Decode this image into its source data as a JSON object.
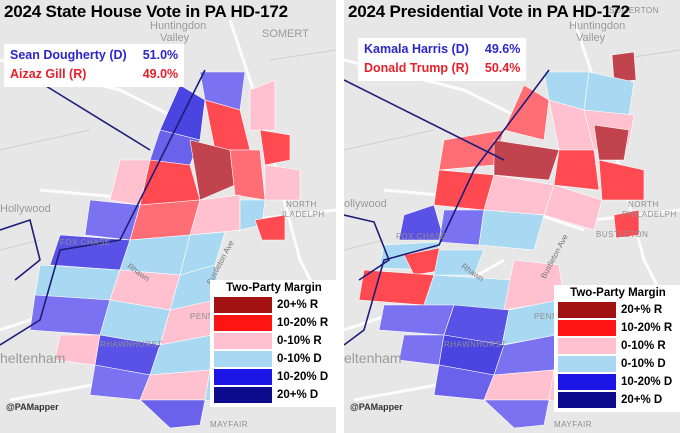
{
  "panels": [
    {
      "title": "2024 State House Vote in PA HD-172",
      "candidates": [
        {
          "name": "Sean Dougherty (D)",
          "pct": "51.0%",
          "party": "D"
        },
        {
          "name": "Aizaz Gill (R)",
          "pct": "49.0%",
          "party": "R"
        }
      ],
      "legend": {
        "title": "Two-Party Margin",
        "items": [
          {
            "label": "20+% R",
            "color": "#a31212"
          },
          {
            "label": "10-20% R",
            "color": "#ff1414"
          },
          {
            "label": "0-10% R",
            "color": "#ffc0cf"
          },
          {
            "label": "0-10% D",
            "color": "#a9d9f2"
          },
          {
            "label": "10-20% D",
            "color": "#1b16e6"
          },
          {
            "label": "20+% D",
            "color": "#0b0b8c"
          }
        ]
      },
      "credit": "@PAMapper",
      "places": {
        "huntingdon": "Huntingdon",
        "valley": "Valley",
        "hollywood": "Hollywood",
        "cheltenham": "heltenham",
        "somerton": "SOMERT",
        "north": "NORTH",
        "philadelphia": "ILADELPH",
        "fox_chase": "FOX CHASE",
        "rhawnhurst": "RHAWNHURST",
        "penn": "PENN",
        "mayfair": "MAYFAIR",
        "bustleton_ave": "Bustleton Ave",
        "rhawn": "Rhawn"
      }
    },
    {
      "title": "2024 Presidential Vote in PA HD-172",
      "candidates": [
        {
          "name": "Kamala Harris (D)",
          "pct": "49.6%",
          "party": "D"
        },
        {
          "name": "Donald Trump (R)",
          "pct": "50.4%",
          "party": "R"
        }
      ],
      "legend": {
        "title": "Two-Party Margin",
        "items": [
          {
            "label": "20+% R",
            "color": "#a31212"
          },
          {
            "label": "10-20% R",
            "color": "#ff1414"
          },
          {
            "label": "0-10% R",
            "color": "#ffc0cf"
          },
          {
            "label": "0-10% D",
            "color": "#a9d9f2"
          },
          {
            "label": "10-20% D",
            "color": "#1b16e6"
          },
          {
            "label": "20+% D",
            "color": "#0b0b8c"
          }
        ]
      },
      "credit": "@PAMapper",
      "places": {
        "huntingdon": "Huntingdon",
        "valley": "Valley",
        "hollywood": "ollywood",
        "cheltenham": "eltenham",
        "somerton": "SOMERTON",
        "north": "NORTH",
        "philadelphia": "PHILADELPH",
        "fox_chase": "FOX CHASE",
        "rhawnhurst": "RHAWNHURST",
        "penn": "PENN",
        "mayfair": "MAYFAIR",
        "bustleton_ave": "Bustleton Ave",
        "bustleton": "BUSTLETON",
        "rhawn": "Rhawn"
      }
    }
  ]
}
